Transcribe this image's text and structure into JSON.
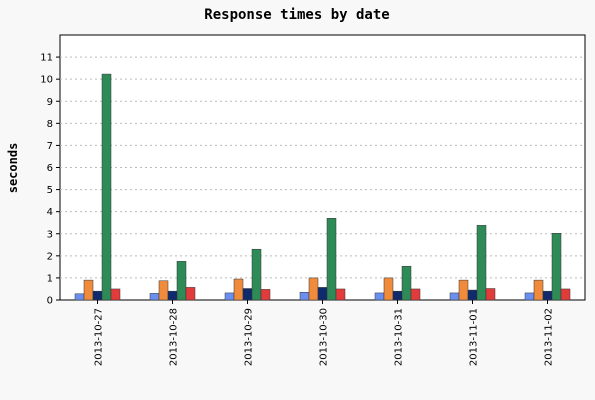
{
  "chart_data": {
    "type": "bar",
    "title": "Response times by date",
    "xlabel": "",
    "ylabel": "seconds",
    "ylim": [
      0,
      12
    ],
    "yticks": [
      0,
      1,
      2,
      3,
      4,
      5,
      6,
      7,
      8,
      9,
      10,
      11
    ],
    "grid": true,
    "categories": [
      "2013-10-27",
      "2013-10-28",
      "2013-10-29",
      "2013-10-30",
      "2013-10-31",
      "2013-11-01",
      "2013-11-02"
    ],
    "series": [
      {
        "color": "#6b8ff0",
        "values": [
          0.28,
          0.3,
          0.32,
          0.35,
          0.32,
          0.32,
          0.32
        ]
      },
      {
        "color": "#f08b3c",
        "values": [
          0.9,
          0.87,
          0.95,
          1.0,
          1.0,
          0.9,
          0.9
        ]
      },
      {
        "color": "#102a6e",
        "values": [
          0.4,
          0.4,
          0.52,
          0.57,
          0.4,
          0.45,
          0.4
        ]
      },
      {
        "color": "#2e8b57",
        "values": [
          10.23,
          1.75,
          2.3,
          3.7,
          1.53,
          3.38,
          3.02
        ]
      },
      {
        "color": "#e23b3b",
        "values": [
          0.5,
          0.57,
          0.48,
          0.5,
          0.5,
          0.52,
          0.5
        ]
      }
    ]
  }
}
